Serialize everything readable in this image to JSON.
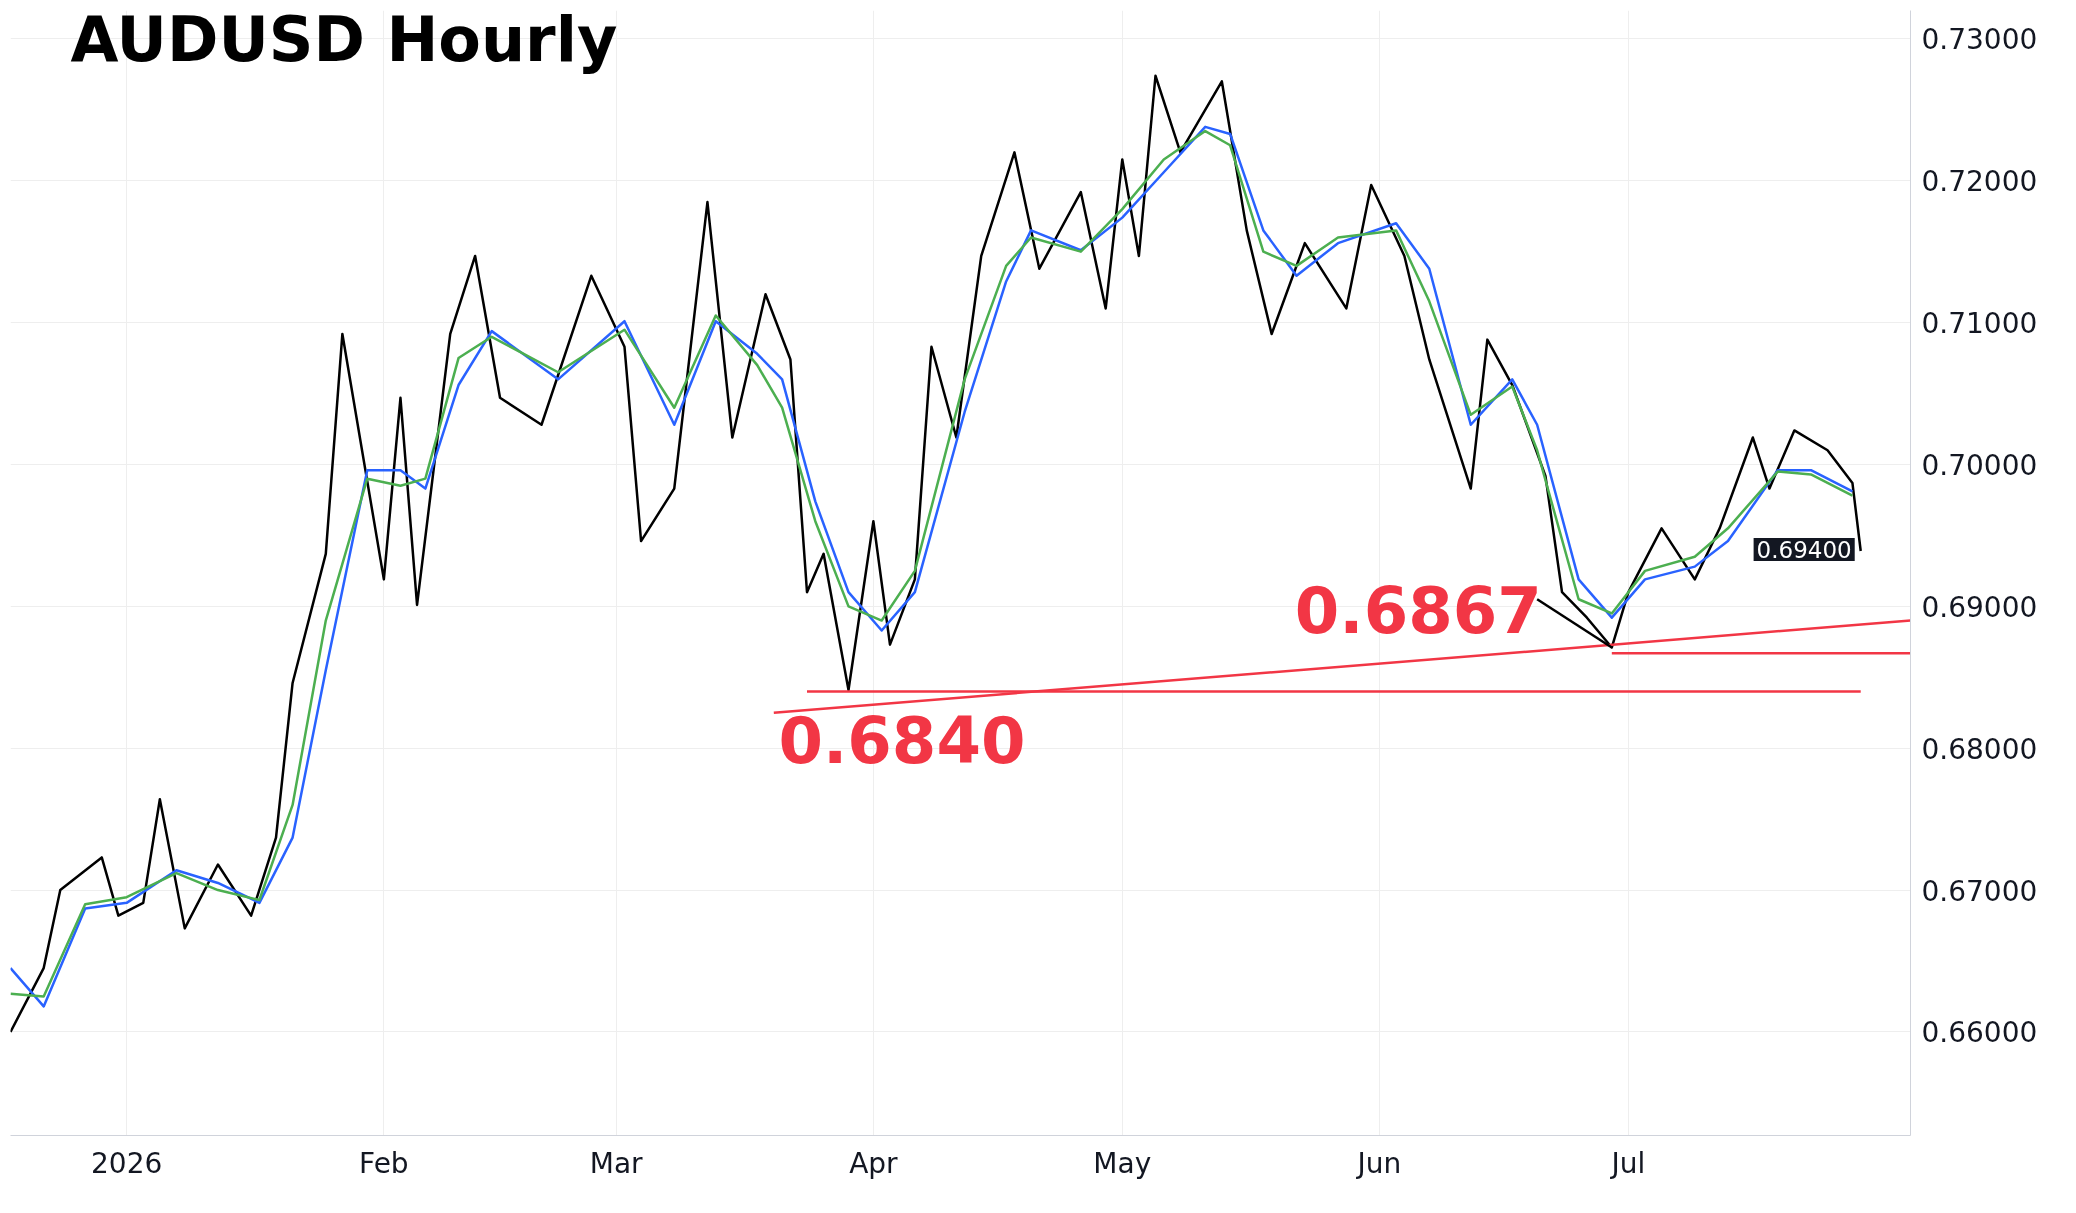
{
  "chart_data": {
    "type": "line",
    "title": "AUDUSD Hourly",
    "xlim": [
      "2025-12-18",
      "2026-08-04"
    ],
    "ylim": [
      0.6527,
      0.732
    ],
    "xticks": [
      {
        "value": "2026-01-01",
        "label": "2026"
      },
      {
        "value": "2026-02-01",
        "label": "Feb"
      },
      {
        "value": "2026-03-01",
        "label": "Mar"
      },
      {
        "value": "2026-04-01",
        "label": "Apr"
      },
      {
        "value": "2026-05-01",
        "label": "May"
      },
      {
        "value": "2026-06-01",
        "label": "Jun"
      },
      {
        "value": "2026-07-01",
        "label": "Jul"
      }
    ],
    "yticks": [
      {
        "value": 0.66,
        "label": "0.66000"
      },
      {
        "value": 0.67,
        "label": "0.67000"
      },
      {
        "value": 0.68,
        "label": "0.68000"
      },
      {
        "value": 0.69,
        "label": "0.69000"
      },
      {
        "value": 0.7,
        "label": "0.70000"
      },
      {
        "value": 0.71,
        "label": "0.71000"
      },
      {
        "value": 0.72,
        "label": "0.72000"
      },
      {
        "value": 0.73,
        "label": "0.73000"
      }
    ],
    "grid": true,
    "series": [
      {
        "color": "#000000",
        "x": [
          "2025-12-18",
          "2025-12-22",
          "2025-12-24",
          "2025-12-29",
          "2025-12-31",
          "2026-01-03",
          "2026-01-05",
          "2026-01-08",
          "2026-01-12",
          "2026-01-16",
          "2026-01-19",
          "2026-01-21",
          "2026-01-25",
          "2026-01-27",
          "2026-02-01",
          "2026-02-03",
          "2026-02-05",
          "2026-02-09",
          "2026-02-12",
          "2026-02-15",
          "2026-02-20",
          "2026-02-26",
          "2026-03-02",
          "2026-03-04",
          "2026-03-08",
          "2026-03-12",
          "2026-03-15",
          "2026-03-19",
          "2026-03-22",
          "2026-03-24",
          "2026-03-26",
          "2026-03-29",
          "2026-04-01",
          "2026-04-03",
          "2026-04-06",
          "2026-04-08",
          "2026-04-11",
          "2026-04-14",
          "2026-04-18",
          "2026-04-21",
          "2026-04-26",
          "2026-04-29",
          "2026-05-01",
          "2026-05-03",
          "2026-05-05",
          "2026-05-08",
          "2026-05-13",
          "2026-05-16",
          "2026-05-19",
          "2026-05-23",
          "2026-05-28",
          "2026-05-31",
          "2026-06-04",
          "2026-06-07",
          "2026-06-12",
          "2026-06-14",
          "2026-06-17",
          "2026-06-21",
          "2026-06-23",
          "2026-06-26",
          "2026-06-29",
          "2026-07-01",
          "2026-07-05",
          "2026-07-09",
          "2026-07-12",
          "2026-07-16",
          "2026-07-18",
          "2026-07-21",
          "2026-07-25",
          "2026-07-28",
          "2026-07-29"
        ],
        "values": [
          0.66,
          0.6645,
          0.67,
          0.6723,
          0.6682,
          0.6691,
          0.6764,
          0.6673,
          0.6718,
          0.6682,
          0.6737,
          0.6846,
          0.6937,
          0.7092,
          0.6919,
          0.7047,
          0.6901,
          0.7092,
          0.7147,
          0.7047,
          0.7028,
          0.7133,
          0.7083,
          0.6946,
          0.6983,
          0.7185,
          0.7019,
          0.712,
          0.7074,
          0.691,
          0.6937,
          0.6841,
          0.696,
          0.6873,
          0.6919,
          0.7083,
          0.7019,
          0.7147,
          0.722,
          0.7138,
          0.7192,
          0.711,
          0.7215,
          0.7147,
          0.7274,
          0.722,
          0.727,
          0.7165,
          0.7092,
          0.7156,
          0.711,
          0.7197,
          0.7147,
          0.7074,
          0.6983,
          0.7088,
          0.7056,
          0.6992,
          0.691,
          0.6892,
          0.6871,
          0.691,
          0.6955,
          0.6919,
          0.6955,
          0.7019,
          0.6983,
          0.7024,
          0.701,
          0.6987,
          0.6939
        ]
      },
      {
        "color": "#2962ff",
        "x": [
          "2025-12-18",
          "2025-12-22",
          "2025-12-27",
          "2026-01-01",
          "2026-01-07",
          "2026-01-12",
          "2026-01-17",
          "2026-01-21",
          "2026-01-25",
          "2026-01-30",
          "2026-02-03",
          "2026-02-06",
          "2026-02-10",
          "2026-02-14",
          "2026-02-22",
          "2026-03-02",
          "2026-03-08",
          "2026-03-13",
          "2026-03-18",
          "2026-03-21",
          "2026-03-25",
          "2026-03-29",
          "2026-04-02",
          "2026-04-06",
          "2026-04-12",
          "2026-04-17",
          "2026-04-20",
          "2026-04-26",
          "2026-05-01",
          "2026-05-06",
          "2026-05-11",
          "2026-05-14",
          "2026-05-18",
          "2026-05-22",
          "2026-05-27",
          "2026-06-03",
          "2026-06-07",
          "2026-06-12",
          "2026-06-17",
          "2026-06-20",
          "2026-06-25",
          "2026-06-29",
          "2026-07-03",
          "2026-07-09",
          "2026-07-13",
          "2026-07-19",
          "2026-07-23",
          "2026-07-28"
        ],
        "values": [
          0.6645,
          0.6618,
          0.6687,
          0.6691,
          0.6714,
          0.6705,
          0.6691,
          0.6737,
          0.6855,
          0.6996,
          0.6996,
          0.6983,
          0.7056,
          0.7094,
          0.706,
          0.7101,
          0.7028,
          0.7101,
          0.7078,
          0.706,
          0.6974,
          0.691,
          0.6883,
          0.691,
          0.7037,
          0.7129,
          0.7165,
          0.7151,
          0.7174,
          0.7206,
          0.7238,
          0.7233,
          0.7165,
          0.7133,
          0.7156,
          0.717,
          0.7138,
          0.7028,
          0.706,
          0.7028,
          0.6919,
          0.6892,
          0.6919,
          0.6928,
          0.6946,
          0.6996,
          0.6996,
          0.6981
        ]
      },
      {
        "color": "#4caf50",
        "x": [
          "2025-12-18",
          "2025-12-22",
          "2025-12-27",
          "2026-01-01",
          "2026-01-07",
          "2026-01-12",
          "2026-01-17",
          "2026-01-21",
          "2026-01-25",
          "2026-01-30",
          "2026-02-03",
          "2026-02-06",
          "2026-02-10",
          "2026-02-14",
          "2026-02-22",
          "2026-03-02",
          "2026-03-08",
          "2026-03-13",
          "2026-03-18",
          "2026-03-21",
          "2026-03-25",
          "2026-03-29",
          "2026-04-02",
          "2026-04-06",
          "2026-04-12",
          "2026-04-17",
          "2026-04-20",
          "2026-04-26",
          "2026-05-01",
          "2026-05-06",
          "2026-05-11",
          "2026-05-14",
          "2026-05-18",
          "2026-05-22",
          "2026-05-27",
          "2026-06-03",
          "2026-06-07",
          "2026-06-12",
          "2026-06-17",
          "2026-06-20",
          "2026-06-25",
          "2026-06-29",
          "2026-07-03",
          "2026-07-09",
          "2026-07-13",
          "2026-07-19",
          "2026-07-23",
          "2026-07-28"
        ],
        "values": [
          0.6627,
          0.6625,
          0.669,
          0.6695,
          0.6712,
          0.67,
          0.6693,
          0.676,
          0.689,
          0.699,
          0.6985,
          0.699,
          0.7075,
          0.709,
          0.7065,
          0.7095,
          0.704,
          0.7105,
          0.707,
          0.704,
          0.696,
          0.69,
          0.689,
          0.6925,
          0.706,
          0.714,
          0.716,
          0.715,
          0.718,
          0.7215,
          0.7235,
          0.7225,
          0.715,
          0.714,
          0.716,
          0.7165,
          0.7115,
          0.7035,
          0.7055,
          0.701,
          0.6905,
          0.6895,
          0.6925,
          0.6935,
          0.6955,
          0.6995,
          0.6993,
          0.6978
        ]
      },
      {
        "color": "#f23645",
        "x": [
          "2026-03-24",
          "2026-07-29"
        ],
        "values": [
          0.684,
          0.684
        ]
      },
      {
        "color": "#f23645",
        "x": [
          "2026-06-29",
          "2026-08-04"
        ],
        "values": [
          0.6867,
          0.6867
        ]
      },
      {
        "color": "#f23645",
        "x": [
          "2026-03-20",
          "2026-08-04"
        ],
        "values": [
          0.6825,
          0.689
        ]
      },
      {
        "color": "#000000",
        "x": [
          "2026-06-20",
          "2026-06-29"
        ],
        "values": [
          0.6905,
          0.6871
        ]
      }
    ],
    "annotations": [
      {
        "text": "0.6840",
        "x": "2026-03-29",
        "y": 0.684
      },
      {
        "text": "0.6867",
        "x": "2026-06-29",
        "y": 0.6867
      },
      {
        "text": "0.69400",
        "x": "2026-07-29",
        "y": 0.694
      }
    ]
  }
}
